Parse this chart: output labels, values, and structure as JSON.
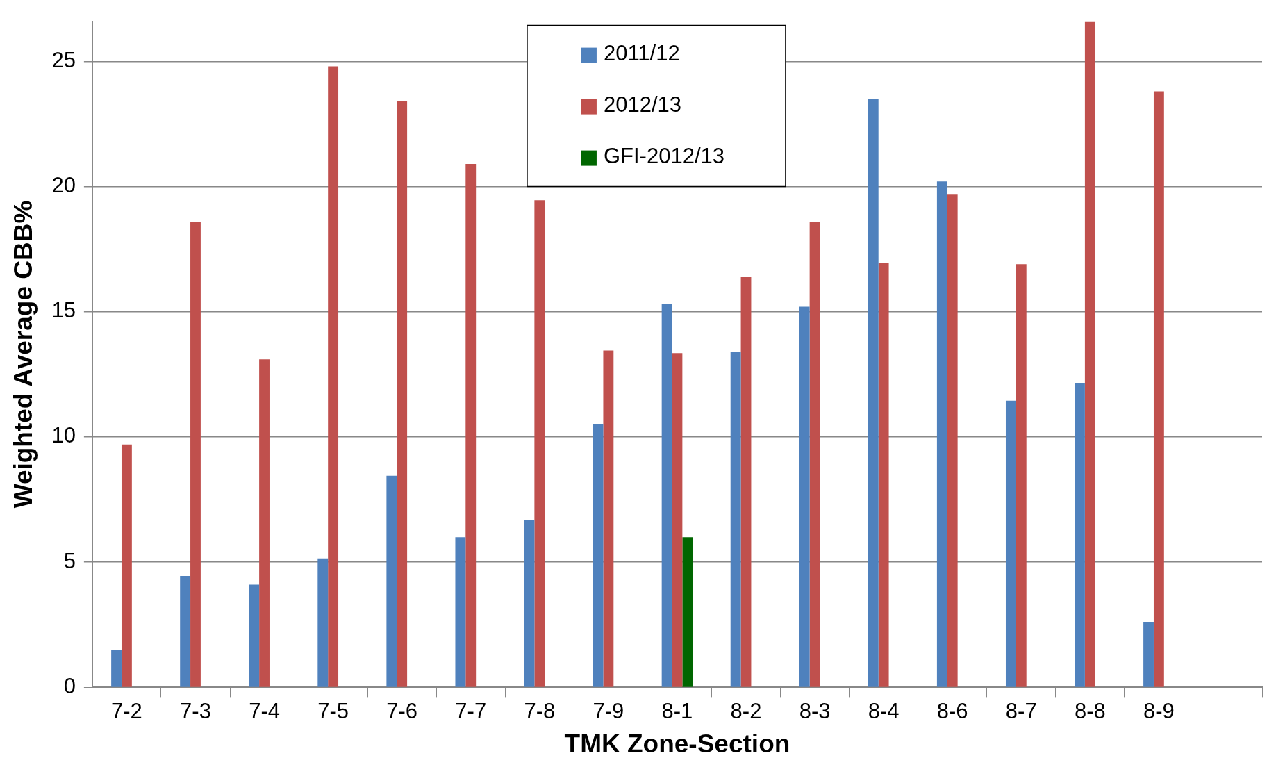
{
  "chart_data": {
    "type": "bar",
    "xlabel": "TMK Zone-Section",
    "ylabel": "Weighted Average CBB%",
    "categories": [
      "7-2",
      "7-3",
      "7-4",
      "7-5",
      "7-6",
      "7-7",
      "7-8",
      "7-9",
      "8-1",
      "8-2",
      "8-3",
      "8-4",
      "8-6",
      "8-7",
      "8-8",
      "8-9",
      null
    ],
    "series": [
      {
        "name": "2011/12",
        "color": "#4f81bd",
        "values": [
          1.5,
          4.45,
          4.1,
          5.15,
          8.45,
          6.0,
          6.7,
          10.5,
          15.3,
          13.4,
          15.2,
          23.5,
          20.2,
          11.45,
          12.15,
          2.6,
          null
        ]
      },
      {
        "name": "2012/13",
        "color": "#c0504d",
        "values": [
          9.7,
          18.6,
          13.1,
          24.8,
          23.4,
          20.9,
          19.45,
          13.45,
          13.35,
          16.4,
          18.6,
          16.95,
          19.7,
          16.9,
          26.6,
          23.8,
          null
        ]
      },
      {
        "name": "GFI-2012/13",
        "color": "#006600",
        "values": [
          null,
          null,
          null,
          null,
          null,
          null,
          null,
          null,
          6.0,
          null,
          null,
          null,
          null,
          null,
          null,
          null,
          null
        ]
      }
    ],
    "ylim": [
      0,
      26.6
    ],
    "yticks": [
      0,
      5,
      10,
      15,
      20,
      25
    ],
    "grid": "y",
    "legend": "top"
  }
}
